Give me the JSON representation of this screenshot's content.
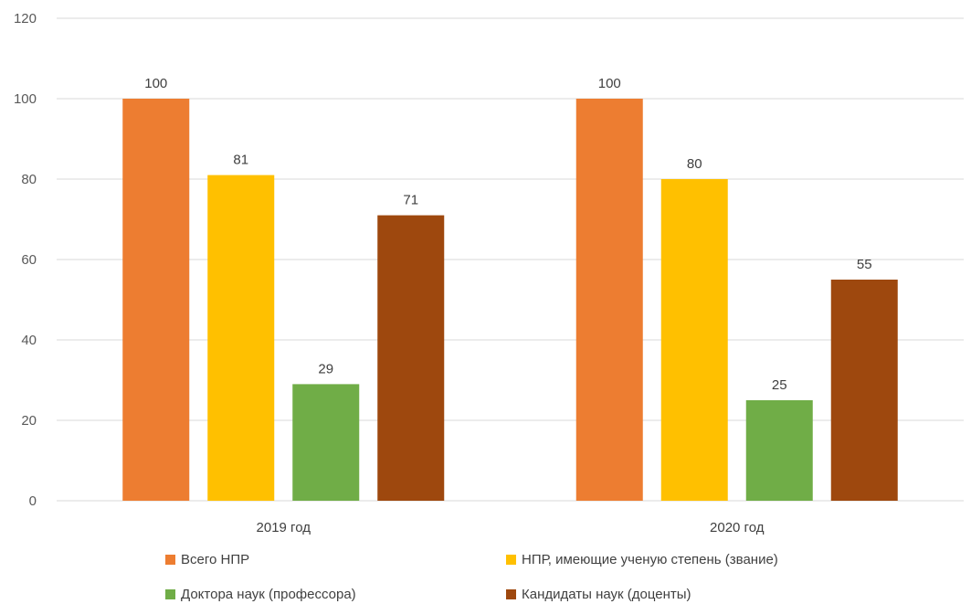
{
  "chart_data": {
    "type": "bar",
    "title": "",
    "xlabel": "",
    "ylabel": "",
    "ylim": [
      0,
      120
    ],
    "yticks": [
      0,
      20,
      40,
      60,
      80,
      100,
      120
    ],
    "grid": true,
    "legend_position": "bottom",
    "categories": [
      "2019 год",
      "2020 год"
    ],
    "series": [
      {
        "name": "Всего НПР",
        "color": "#ED7D31",
        "values": [
          100,
          100
        ]
      },
      {
        "name": "НПР, имеющие ученую степень (звание)",
        "color": "#FFC000",
        "values": [
          81,
          80
        ]
      },
      {
        "name": "Доктора наук (профессора)",
        "color": "#70AD47",
        "values": [
          29,
          25
        ]
      },
      {
        "name": "Кандидаты наук (доценты)",
        "color": "#9E480E",
        "values": [
          71,
          55
        ]
      }
    ]
  }
}
